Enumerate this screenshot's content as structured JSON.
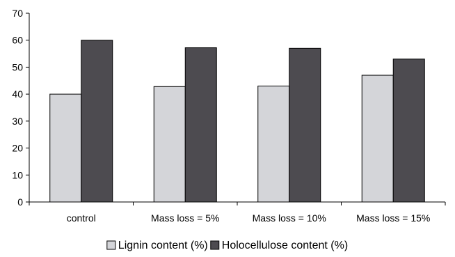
{
  "chart_data": {
    "type": "bar",
    "categories": [
      "control",
      "Mass loss = 5%",
      "Mass loss = 10%",
      "Mass loss = 15%"
    ],
    "series": [
      {
        "name": "Lignin content (%)",
        "values": [
          40,
          42.8,
          43,
          47
        ],
        "color": "#d4d5d9"
      },
      {
        "name": "Holocellulose content (%)",
        "values": [
          60,
          57.2,
          57,
          53
        ],
        "color": "#4d4b50"
      }
    ],
    "ylim": [
      0,
      70
    ],
    "yticks": [
      0,
      10,
      20,
      30,
      40,
      50,
      60,
      70
    ],
    "yticks_labels": [
      "0",
      "10",
      "20",
      "30",
      "40",
      "50",
      "60",
      "70"
    ],
    "title": "",
    "xlabel": "",
    "ylabel": "",
    "grid": false,
    "legend_position": "bottom"
  }
}
